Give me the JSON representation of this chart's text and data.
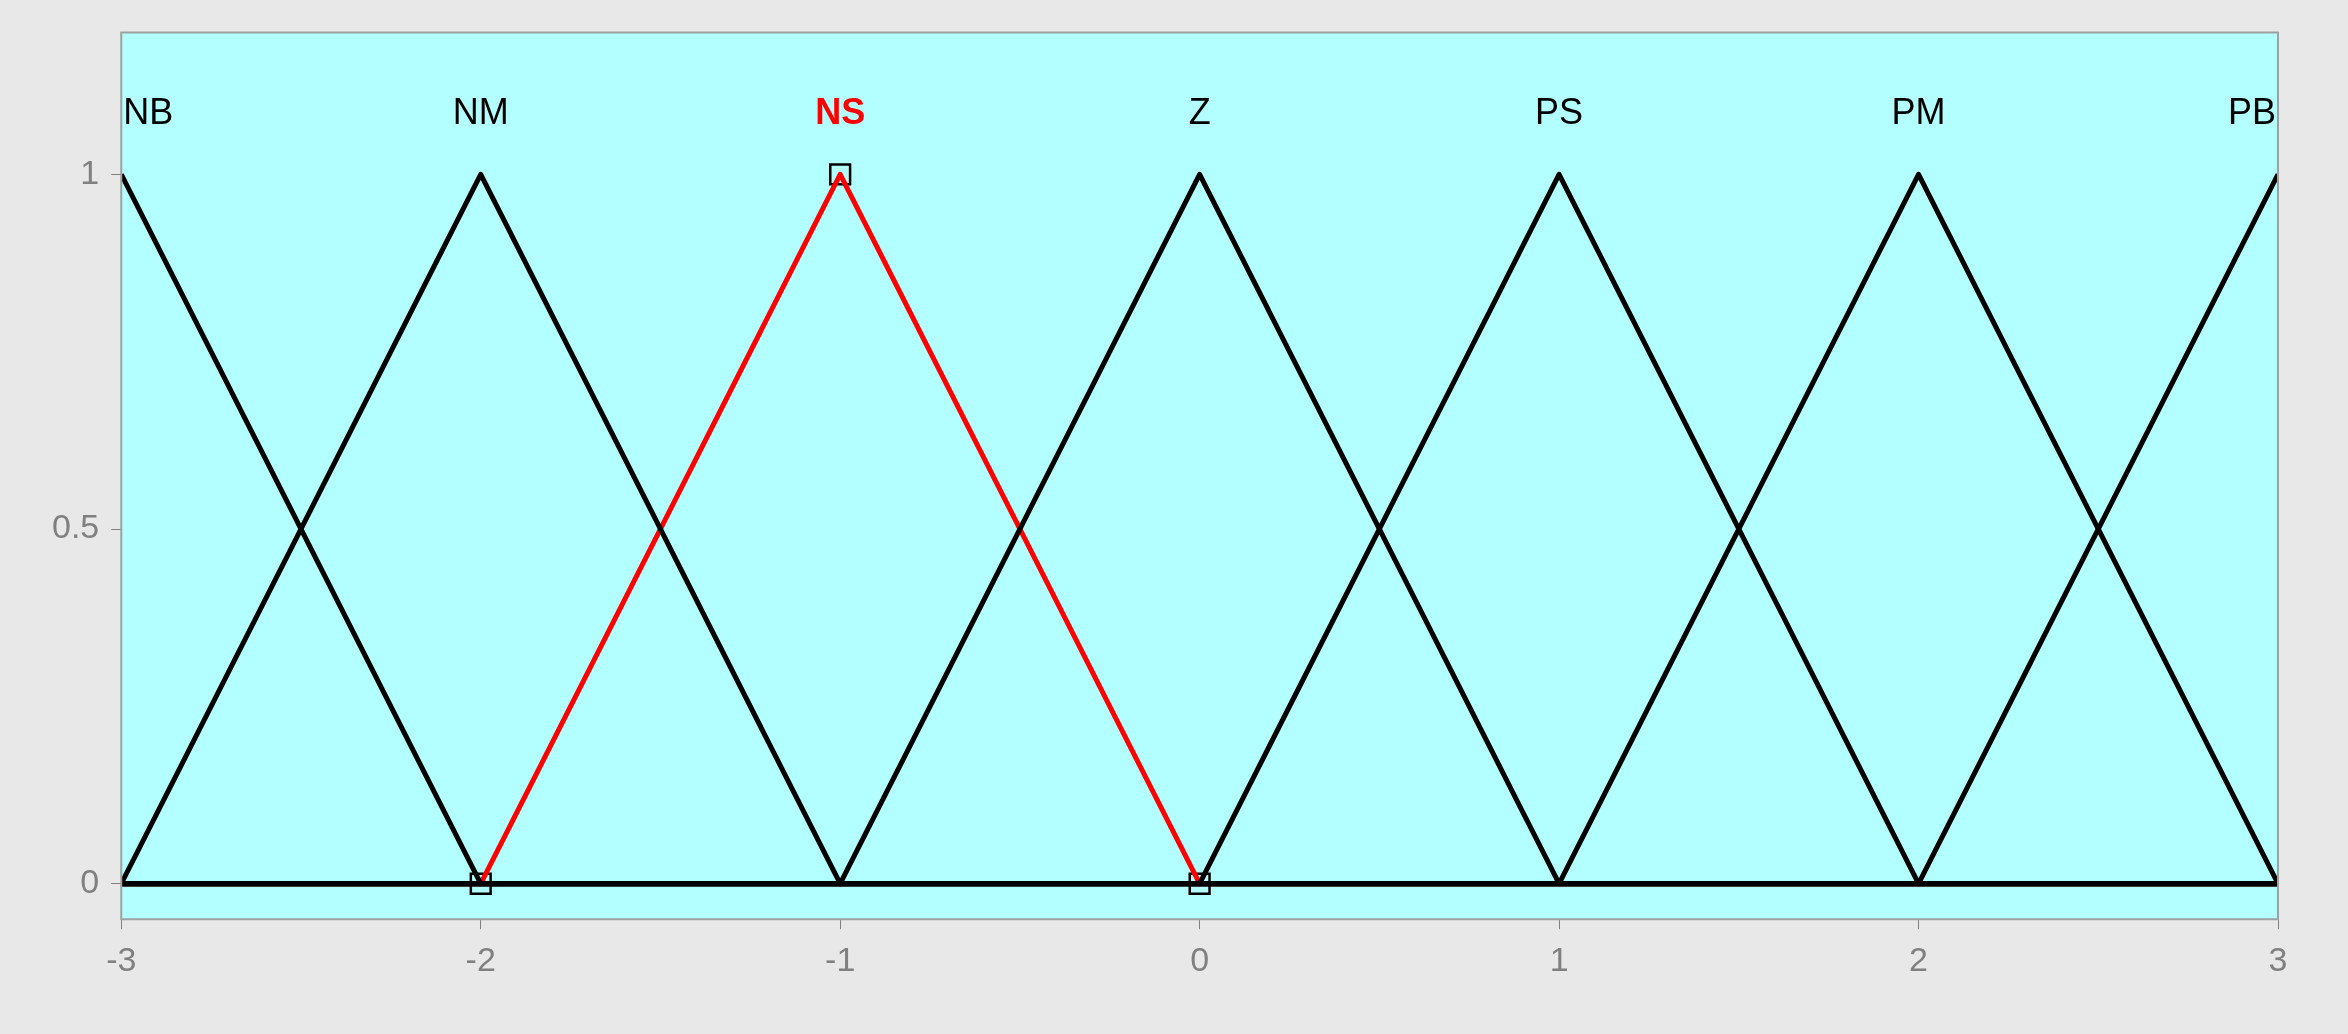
{
  "chart_data": {
    "type": "line",
    "xlim": [
      -3,
      3
    ],
    "xticks": [
      -3,
      -2,
      -1,
      0,
      1,
      2,
      3
    ],
    "ylim": [
      -0.05,
      1.2
    ],
    "yticks": [
      0,
      0.5,
      1
    ],
    "grid": false,
    "legend": false,
    "marker": "none",
    "series": [
      {
        "name": "NB",
        "color": "#000000",
        "x": [
          -3,
          -2,
          3
        ],
        "values": [
          1,
          0,
          0
        ]
      },
      {
        "name": "NM",
        "color": "#000000",
        "x": [
          -3,
          -2,
          -1,
          3
        ],
        "values": [
          0,
          1,
          0,
          0
        ]
      },
      {
        "name": "Z",
        "color": "#000000",
        "x": [
          -3,
          -1,
          0,
          1,
          3
        ],
        "values": [
          0,
          0,
          1,
          0,
          0
        ]
      },
      {
        "name": "PS",
        "color": "#000000",
        "x": [
          -3,
          0,
          1,
          2,
          3
        ],
        "values": [
          0,
          0,
          1,
          0,
          0
        ]
      },
      {
        "name": "PM",
        "color": "#000000",
        "x": [
          -3,
          1,
          2,
          3
        ],
        "values": [
          0,
          0,
          1,
          0
        ]
      },
      {
        "name": "PB",
        "color": "#000000",
        "x": [
          -3,
          2,
          3
        ],
        "values": [
          0,
          0,
          1
        ]
      },
      {
        "name": "NS",
        "color": "#ff0000",
        "x": [
          -3,
          -2,
          -1,
          0,
          3
        ],
        "values": [
          0,
          0,
          1,
          0,
          0
        ]
      },
      {
        "type": "scatter",
        "marker": "square",
        "color": "#000000",
        "x": [
          -2,
          -1,
          0
        ],
        "values": [
          0,
          1,
          0
        ]
      }
    ]
  }
}
